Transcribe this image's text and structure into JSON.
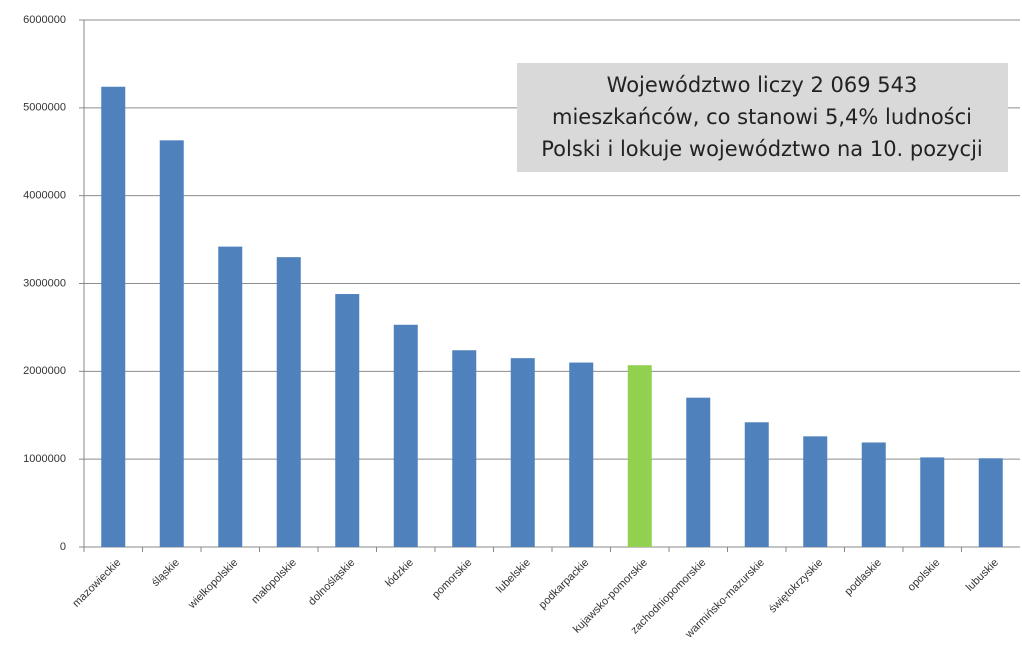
{
  "chart_data": {
    "type": "bar",
    "categories": [
      "mazowieckie",
      "śląskie",
      "wielkopolskie",
      "małopolskie",
      "dolnośląskie",
      "łódzkie",
      "pomorskie",
      "lubelskie",
      "podkarpackie",
      "kujawsko-pomorskie",
      "zachodniopomorskie",
      "warmińsko-mazurskie",
      "świętokrzyskie",
      "podlaskie",
      "opolskie",
      "lubuskie"
    ],
    "values": [
      5240000,
      4630000,
      3420000,
      3300000,
      2880000,
      2530000,
      2240000,
      2150000,
      2100000,
      2069543,
      1700000,
      1420000,
      1260000,
      1190000,
      1020000,
      1010000
    ],
    "colors": [
      "#4f81bd",
      "#4f81bd",
      "#4f81bd",
      "#4f81bd",
      "#4f81bd",
      "#4f81bd",
      "#4f81bd",
      "#4f81bd",
      "#4f81bd",
      "#92d050",
      "#4f81bd",
      "#4f81bd",
      "#4f81bd",
      "#4f81bd",
      "#4f81bd",
      "#4f81bd"
    ],
    "ylim": [
      0,
      6000000
    ],
    "yticks": [
      0,
      1000000,
      2000000,
      3000000,
      4000000,
      5000000,
      6000000
    ],
    "grid": true,
    "annotation": [
      "Województwo liczy  2 069 543",
      "mieszkańców, co stanowi 5,4% ludności",
      "Polski i lokuje województwo na 10. pozycji"
    ]
  }
}
